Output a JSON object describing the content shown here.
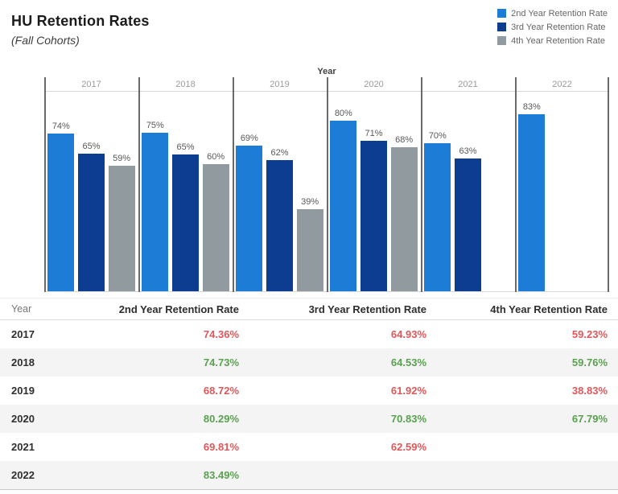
{
  "title": "HU Retention Rates",
  "subtitle": "(Fall Cohorts)",
  "legend": {
    "items": [
      {
        "label": "2nd Year Retention Rate",
        "color": "#1d7cd6"
      },
      {
        "label": "3rd Year Retention Rate",
        "color": "#0d3d91"
      },
      {
        "label": "4th Year Retention Rate",
        "color": "#919b9f"
      }
    ]
  },
  "chart_data": {
    "type": "bar",
    "title": "HU Retention Rates (Fall Cohorts)",
    "x_axis_title": "Year",
    "categories": [
      "2017",
      "2018",
      "2019",
      "2020",
      "2021",
      "2022"
    ],
    "series": [
      {
        "name": "2nd Year Retention Rate",
        "color": "#1d7cd6",
        "values": [
          74.36,
          74.73,
          68.72,
          80.29,
          69.81,
          83.49
        ],
        "labels": [
          "74%",
          "75%",
          "69%",
          "80%",
          "70%",
          "83%"
        ]
      },
      {
        "name": "3rd Year Retention Rate",
        "color": "#0d3d91",
        "values": [
          64.93,
          64.53,
          61.92,
          70.83,
          62.59,
          null
        ],
        "labels": [
          "65%",
          "65%",
          "62%",
          "71%",
          "63%",
          null
        ]
      },
      {
        "name": "4th Year Retention Rate",
        "color": "#919b9f",
        "values": [
          59.23,
          59.76,
          38.83,
          67.79,
          null,
          null
        ],
        "labels": [
          "59%",
          "60%",
          "39%",
          "68%",
          null,
          null
        ]
      }
    ],
    "ylim": [
      0,
      94
    ],
    "grid": false,
    "legend_position": "top-right",
    "bar_value_labels": true
  },
  "table": {
    "columns": [
      "Year",
      "2nd Year Retention Rate",
      "3rd Year Retention Rate",
      "4th Year Retention Rate"
    ],
    "rows": [
      {
        "year": "2017",
        "cells": [
          {
            "text": "74.36%",
            "color": "#e15759"
          },
          {
            "text": "64.93%",
            "color": "#e15759"
          },
          {
            "text": "59.23%",
            "color": "#e15759"
          }
        ]
      },
      {
        "year": "2018",
        "cells": [
          {
            "text": "74.73%",
            "color": "#59a14f"
          },
          {
            "text": "64.53%",
            "color": "#59a14f"
          },
          {
            "text": "59.76%",
            "color": "#59a14f"
          }
        ]
      },
      {
        "year": "2019",
        "cells": [
          {
            "text": "68.72%",
            "color": "#e15759"
          },
          {
            "text": "61.92%",
            "color": "#e15759"
          },
          {
            "text": "38.83%",
            "color": "#e15759"
          }
        ]
      },
      {
        "year": "2020",
        "cells": [
          {
            "text": "80.29%",
            "color": "#59a14f"
          },
          {
            "text": "70.83%",
            "color": "#59a14f"
          },
          {
            "text": "67.79%",
            "color": "#59a14f"
          }
        ]
      },
      {
        "year": "2021",
        "cells": [
          {
            "text": "69.81%",
            "color": "#e15759"
          },
          {
            "text": "62.59%",
            "color": "#e15759"
          },
          null
        ]
      },
      {
        "year": "2022",
        "cells": [
          {
            "text": "83.49%",
            "color": "#59a14f"
          },
          null,
          null
        ]
      }
    ]
  },
  "colors": {
    "positive": "#59a14f",
    "negative": "#e15759",
    "series_2nd": "#1d7cd6",
    "series_3rd": "#0d3d91",
    "series_4th": "#919b9f",
    "alt_row_bg": "#f4f4f4"
  }
}
